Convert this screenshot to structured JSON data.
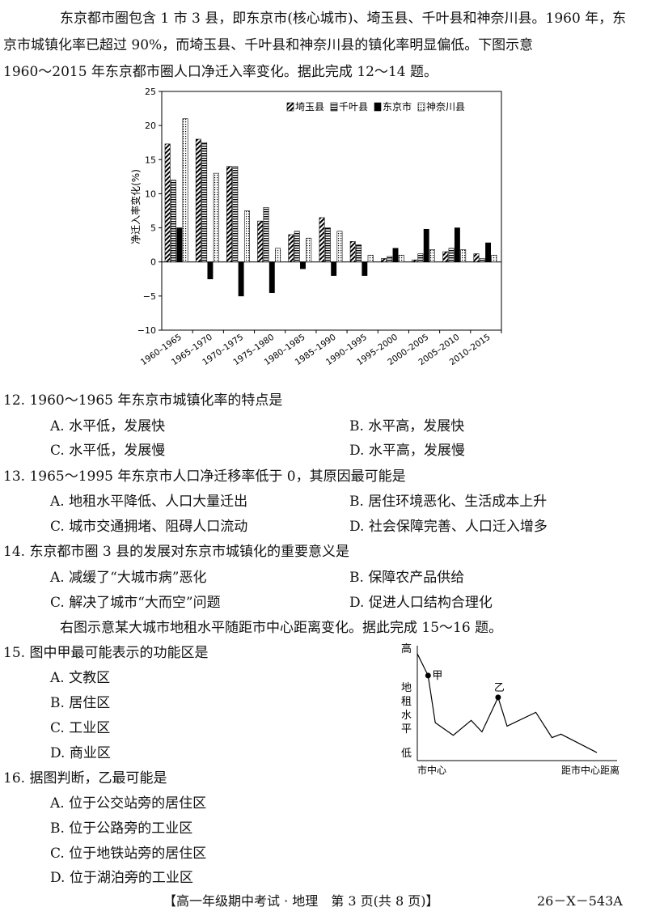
{
  "intro": {
    "line1": "东京都市圈包含 1 市 3 县，即东京市(核心城市)、埼玉县、千叶县和神奈川县。1960 年，东",
    "line2": "京市城镇化率已超过 90%，而埼玉县、千叶县和神奈川县的镇化率明显偏低。下图示意",
    "line3": "1960～2015 年东京都市圈人口净迁入率变化。据此完成 12～14 题。"
  },
  "chart_data": [
    {
      "type": "bar",
      "ylabel": "净迁入率变化(%)",
      "ylim": [
        -10,
        25
      ],
      "yticks": [
        25,
        20,
        15,
        10,
        5,
        0,
        -5,
        -10
      ],
      "categories": [
        "1960–1965",
        "1965–1970",
        "1970–1975",
        "1975–1980",
        "1980–1985",
        "1985–1990",
        "1990–1995",
        "1995–2000",
        "2000–2005",
        "2005–2010",
        "2010–2015"
      ],
      "series": [
        {
          "name": "埼玉县",
          "pattern": "hatch",
          "values": [
            17.3,
            18.0,
            14.0,
            6.0,
            4.0,
            6.5,
            3.0,
            0.5,
            0.3,
            1.5,
            1.2
          ]
        },
        {
          "name": "千叶县",
          "pattern": "stripes",
          "values": [
            12.0,
            17.5,
            14.0,
            8.0,
            4.5,
            5.0,
            2.5,
            0.8,
            1.2,
            2.0,
            0.5
          ]
        },
        {
          "name": "东京市",
          "pattern": "solid",
          "values": [
            5.0,
            -2.5,
            -5.0,
            -4.5,
            -1.0,
            -2.0,
            -2.0,
            2.0,
            4.8,
            5.0,
            2.8
          ]
        },
        {
          "name": "神奈川县",
          "pattern": "dots",
          "values": [
            21.0,
            13.0,
            7.5,
            2.0,
            3.5,
            4.5,
            1.0,
            1.0,
            1.8,
            1.8,
            1.0
          ]
        }
      ],
      "legend_position": "top-right",
      "grid": false
    },
    {
      "type": "line",
      "xlabel": "距市中心距离",
      "x_start_label": "市中心",
      "y_high_label": "高",
      "y_low_label": "低",
      "ylabel": "地租水平",
      "points": [
        [
          0,
          0.93
        ],
        [
          0.06,
          0.74
        ],
        [
          0.1,
          0.33
        ],
        [
          0.2,
          0.22
        ],
        [
          0.3,
          0.35
        ],
        [
          0.36,
          0.25
        ],
        [
          0.45,
          0.55
        ],
        [
          0.5,
          0.3
        ],
        [
          0.66,
          0.42
        ],
        [
          0.75,
          0.2
        ],
        [
          0.8,
          0.23
        ],
        [
          1.0,
          0.07
        ]
      ],
      "annotations": [
        {
          "label": "甲",
          "x": 0.06,
          "y": 0.74
        },
        {
          "label": "乙",
          "x": 0.45,
          "y": 0.55
        }
      ]
    }
  ],
  "q12": {
    "stem": "12. 1960～1965 年东京市城镇化率的特点是",
    "a": "A. 水平低，发展快",
    "b": "B. 水平高，发展快",
    "c": "C. 水平低，发展慢",
    "d": "D. 水平高，发展慢"
  },
  "q13": {
    "stem": "13. 1965～1995 年东京市人口净迁移率低于 0，其原因最可能是",
    "a": "A. 地租水平降低、人口大量迁出",
    "b": "B. 居住环境恶化、生活成本上升",
    "c": "C. 城市交通拥堵、阻碍人口流动",
    "d": "D. 社会保障完善、人口迁入增多"
  },
  "q14": {
    "stem": "14. 东京都市圈 3 县的发展对东京市城镇化的重要意义是",
    "a": "A. 减缓了“大城市病”恶化",
    "b": "B. 保障农产品供给",
    "c": "C. 解决了城市“大而空”问题",
    "d": "D. 促进人口结构合理化"
  },
  "intro2": "右图示意某大城市地租水平随距市中心距离变化。据此完成 15～16 题。",
  "q15": {
    "stem": "15. 图中甲最可能表示的功能区是",
    "a": "A. 文教区",
    "b": "B. 居住区",
    "c": "C. 工业区",
    "d": "D. 商业区"
  },
  "q16": {
    "stem": "16. 据图判断，乙最可能是",
    "a": "A. 位于公交站旁的居住区",
    "b": "B. 位于公路旁的工业区",
    "c": "C. 位于地铁站旁的居住区",
    "d": "D. 位于湖泊旁的工业区"
  },
  "footer": {
    "title": "【高一年级期中考试 · 地理　第 3 页(共 8 页)】",
    "code": "26－X－543A"
  }
}
